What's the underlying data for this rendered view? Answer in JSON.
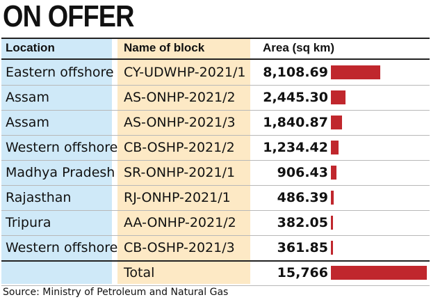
{
  "title": "ON OFFER",
  "source": "Source: Ministry of Petroleum and Natural Gas",
  "colors": {
    "bar": "#c0272d",
    "location_bg": "#cfe9f8",
    "block_bg": "#fde9c5"
  },
  "headers": {
    "location": "Location",
    "block": "Name of block",
    "area": "Area (sq km)"
  },
  "chart_data": {
    "type": "bar",
    "title": "ON OFFER",
    "columns": [
      "Location",
      "Name of block",
      "Area (sq km)"
    ],
    "rows": [
      {
        "location": "Eastern offshore",
        "block": "CY-UDWHP-2021/1",
        "area_label": "8,108.69",
        "area": 8108.69
      },
      {
        "location": "Assam",
        "block": "AS-ONHP-2021/2",
        "area_label": "2,445.30",
        "area": 2445.3
      },
      {
        "location": "Assam",
        "block": "AS-ONHP-2021/3",
        "area_label": "1,840.87",
        "area": 1840.87
      },
      {
        "location": "Western offshore",
        "block": "CB-OSHP-2021/2",
        "area_label": "1,234.42",
        "area": 1234.42
      },
      {
        "location": "Madhya Pradesh",
        "block": "SR-ONHP-2021/1",
        "area_label": "906.43",
        "area": 906.43
      },
      {
        "location": "Rajasthan",
        "block": "RJ-ONHP-2021/1",
        "area_label": "486.39",
        "area": 486.39
      },
      {
        "location": "Tripura",
        "block": "AA-ONHP-2021/2",
        "area_label": "382.05",
        "area": 382.05
      },
      {
        "location": "Western offshore",
        "block": "CB-OSHP-2021/3",
        "area_label": "361.85",
        "area": 361.85
      },
      {
        "location": "",
        "block": "Total",
        "area_label": "15,766",
        "area": 15766
      }
    ]
  }
}
